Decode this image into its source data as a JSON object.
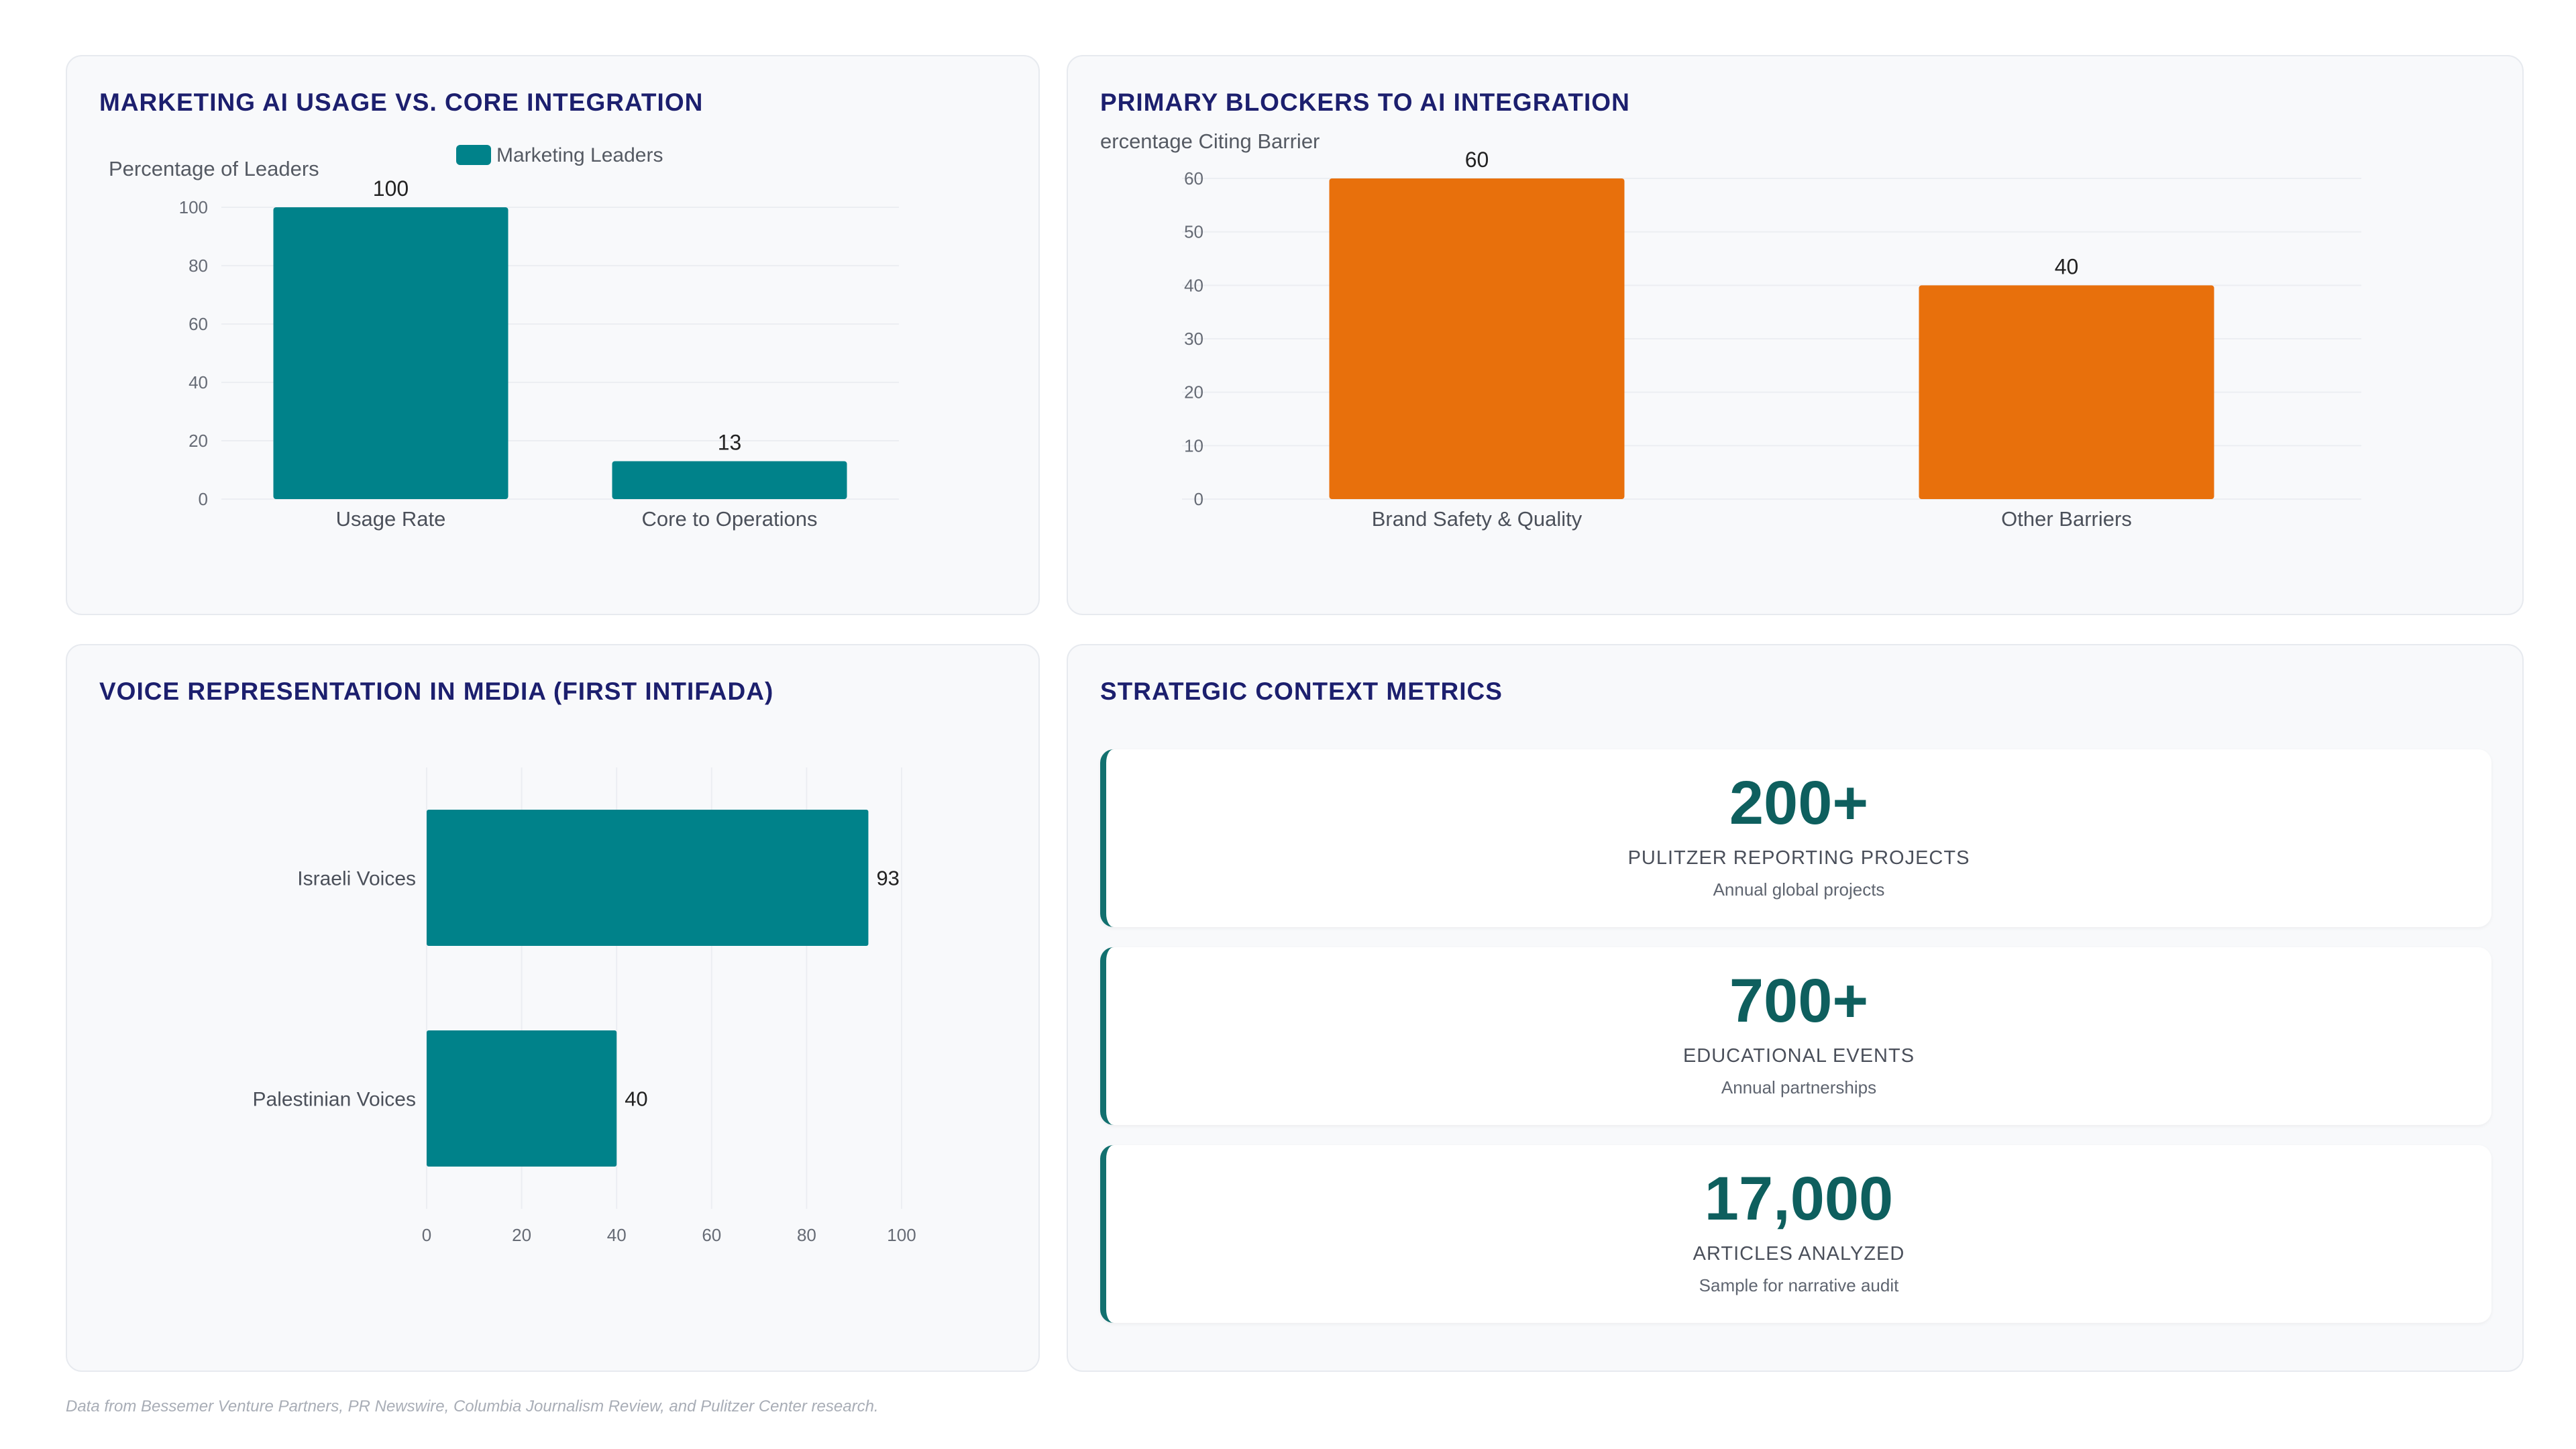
{
  "panels": {
    "marketing": {
      "title": "MARKETING AI USAGE VS. CORE INTEGRATION"
    },
    "blockers": {
      "title": "PRIMARY BLOCKERS TO AI INTEGRATION"
    },
    "voice": {
      "title": "VOICE REPRESENTATION IN MEDIA (FIRST INTIFADA)"
    },
    "metrics": {
      "title": "STRATEGIC CONTEXT METRICS",
      "cards": [
        {
          "value": "200+",
          "label": "PULITZER REPORTING PROJECTS",
          "sub": "Annual global projects"
        },
        {
          "value": "700+",
          "label": "EDUCATIONAL EVENTS",
          "sub": "Annual partnerships"
        },
        {
          "value": "17,000",
          "label": "ARTICLES ANALYZED",
          "sub": "Sample for narrative audit"
        }
      ]
    }
  },
  "footer": "Data from Bessemer Venture Partners, PR Newswire, Columbia Journalism Review, and Pulitzer Center research.",
  "colors": {
    "teal": "#00828a",
    "orange": "#e8700c",
    "title": "#1c1f6e",
    "metric": "#0e5f5e"
  },
  "chart_data": [
    {
      "type": "bar",
      "categories": [
        "Usage Rate",
        "Core to Operations"
      ],
      "series": [
        {
          "name": "Marketing Leaders",
          "values": [
            100,
            13
          ]
        }
      ],
      "ylabel": "Percentage of Leaders",
      "ylim": [
        0,
        100
      ],
      "yticks": [
        0,
        20,
        40,
        60,
        80,
        100
      ],
      "legend": "top-center",
      "grid": true
    },
    {
      "type": "bar",
      "categories": [
        "Brand Safety & Quality",
        "Other Barriers"
      ],
      "series": [
        {
          "values": [
            60,
            40
          ]
        }
      ],
      "ylabel": "ercentage Citing Barrier",
      "ylim": [
        0,
        60
      ],
      "yticks": [
        0,
        10,
        20,
        30,
        40,
        50,
        60
      ],
      "grid": true
    },
    {
      "type": "bar",
      "orientation": "horizontal",
      "categories": [
        "Israeli Voices",
        "Palestinian Voices"
      ],
      "series": [
        {
          "values": [
            93,
            40
          ]
        }
      ],
      "xlim": [
        0,
        100
      ],
      "xticks": [
        0,
        20,
        40,
        60,
        80,
        100
      ],
      "grid": true
    }
  ]
}
